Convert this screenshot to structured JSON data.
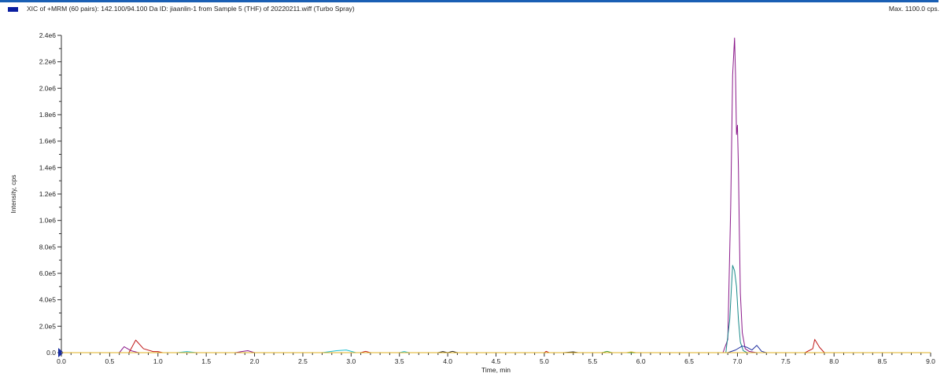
{
  "header": {
    "title": "XIC of +MRM (60 pairs): 142.100/94.100 Da ID: jiaanlin-1 from Sample 5 (THF) of 20220211.wiff (Turbo Spray)",
    "max_label": "Max. 1100.0 cps.",
    "legend_swatch_color": "#0a1ea0",
    "accent_bar_color": "#1a5fb4"
  },
  "chart_data": {
    "type": "line",
    "title": "",
    "xlabel": "Time, min",
    "ylabel": "Intensity, cps",
    "xlim": [
      0.0,
      9.0
    ],
    "ylim": [
      0,
      2400000
    ],
    "x_ticks": [
      {
        "value": 0.0,
        "label": "0.0"
      },
      {
        "value": 0.5,
        "label": "0.5"
      },
      {
        "value": 1.0,
        "label": "1.0"
      },
      {
        "value": 1.5,
        "label": "1.5"
      },
      {
        "value": 2.0,
        "label": "2.0"
      },
      {
        "value": 2.5,
        "label": "2.5"
      },
      {
        "value": 3.0,
        "label": "3.0"
      },
      {
        "value": 3.5,
        "label": "3.5"
      },
      {
        "value": 4.0,
        "label": "4.0"
      },
      {
        "value": 4.5,
        "label": "4.5"
      },
      {
        "value": 5.0,
        "label": "5.0"
      },
      {
        "value": 5.5,
        "label": "5.5"
      },
      {
        "value": 6.0,
        "label": "6.0"
      },
      {
        "value": 6.5,
        "label": "6.5"
      },
      {
        "value": 7.0,
        "label": "7.0"
      },
      {
        "value": 7.5,
        "label": "7.5"
      },
      {
        "value": 8.0,
        "label": "8.0"
      },
      {
        "value": 8.5,
        "label": "8.5"
      },
      {
        "value": 9.0,
        "label": "9.0"
      }
    ],
    "y_ticks": [
      {
        "value": 0,
        "label": "0.0"
      },
      {
        "value": 200000,
        "label": "2.0e5"
      },
      {
        "value": 400000,
        "label": "4.0e5"
      },
      {
        "value": 600000,
        "label": "6.0e5"
      },
      {
        "value": 800000,
        "label": "8.0e5"
      },
      {
        "value": 1000000,
        "label": "1.0e6"
      },
      {
        "value": 1200000,
        "label": "1.2e6"
      },
      {
        "value": 1400000,
        "label": "1.4e6"
      },
      {
        "value": 1600000,
        "label": "1.6e6"
      },
      {
        "value": 1800000,
        "label": "1.8e6"
      },
      {
        "value": 2000000,
        "label": "2.0e6"
      },
      {
        "value": 2200000,
        "label": "2.2e6"
      },
      {
        "value": 2400000,
        "label": "2.4e6"
      }
    ],
    "grid": false,
    "series": [
      {
        "color": "#8b1a8b",
        "x": [
          0.0,
          0.6,
          0.65,
          0.72,
          0.8,
          0.9,
          1.8,
          1.88,
          1.93,
          2.0,
          6.85,
          6.9,
          6.93,
          6.95,
          6.97,
          6.98,
          6.99,
          7.0,
          7.01,
          7.02,
          7.03,
          7.05,
          7.08,
          7.12,
          7.2,
          9.0
        ],
        "y": [
          0,
          0,
          45000,
          15000,
          0,
          0,
          0,
          10000,
          15000,
          0,
          0,
          100000,
          1100000,
          2100000,
          2380000,
          2100000,
          1650000,
          1720000,
          1400000,
          900000,
          450000,
          150000,
          30000,
          10000,
          0,
          0
        ]
      },
      {
        "color": "#c01818",
        "x": [
          0.0,
          0.7,
          0.77,
          0.85,
          0.95,
          1.0,
          1.05,
          3.1,
          3.15,
          3.2,
          5.0,
          5.02,
          5.05,
          7.7,
          7.78,
          7.8,
          7.85,
          7.9,
          9.0
        ],
        "y": [
          0,
          0,
          95000,
          30000,
          8000,
          8000,
          0,
          0,
          10000,
          0,
          0,
          10000,
          0,
          0,
          30000,
          100000,
          40000,
          0,
          0
        ]
      },
      {
        "color": "#1a8a8a",
        "x": [
          0.0,
          6.88,
          6.92,
          6.95,
          6.97,
          6.99,
          7.01,
          7.03,
          7.06,
          7.1,
          9.0
        ],
        "y": [
          0,
          0,
          250000,
          660000,
          620000,
          500000,
          250000,
          80000,
          15000,
          0,
          0
        ]
      },
      {
        "color": "#20c0d0",
        "x": [
          0.0,
          1.2,
          1.3,
          1.4,
          2.7,
          2.85,
          2.95,
          3.05,
          3.5,
          3.55,
          3.6,
          9.0
        ],
        "y": [
          0,
          0,
          8000,
          0,
          0,
          15000,
          20000,
          0,
          0,
          8000,
          0,
          0
        ]
      },
      {
        "color": "#2030a0",
        "x": [
          0.0,
          6.9,
          6.98,
          7.05,
          7.1,
          7.15,
          7.2,
          7.25,
          7.3,
          9.0
        ],
        "y": [
          0,
          0,
          20000,
          50000,
          40000,
          20000,
          55000,
          10000,
          0,
          0
        ]
      },
      {
        "color": "#222222",
        "x": [
          0.0,
          3.9,
          3.95,
          4.0,
          4.05,
          4.1,
          5.2,
          5.3,
          5.35,
          5.4,
          9.0
        ],
        "y": [
          0,
          0,
          8000,
          0,
          10000,
          0,
          0,
          6000,
          0,
          0,
          0
        ]
      },
      {
        "color": "#3a9a30",
        "x": [
          0.0,
          5.6,
          5.65,
          5.7,
          9.0
        ],
        "y": [
          0,
          0,
          10000,
          0,
          0
        ]
      },
      {
        "color": "#e0b020",
        "x": [
          0.0,
          5.85,
          5.9,
          5.95,
          9.0
        ],
        "y": [
          0,
          0,
          6000,
          0,
          0
        ]
      }
    ]
  }
}
